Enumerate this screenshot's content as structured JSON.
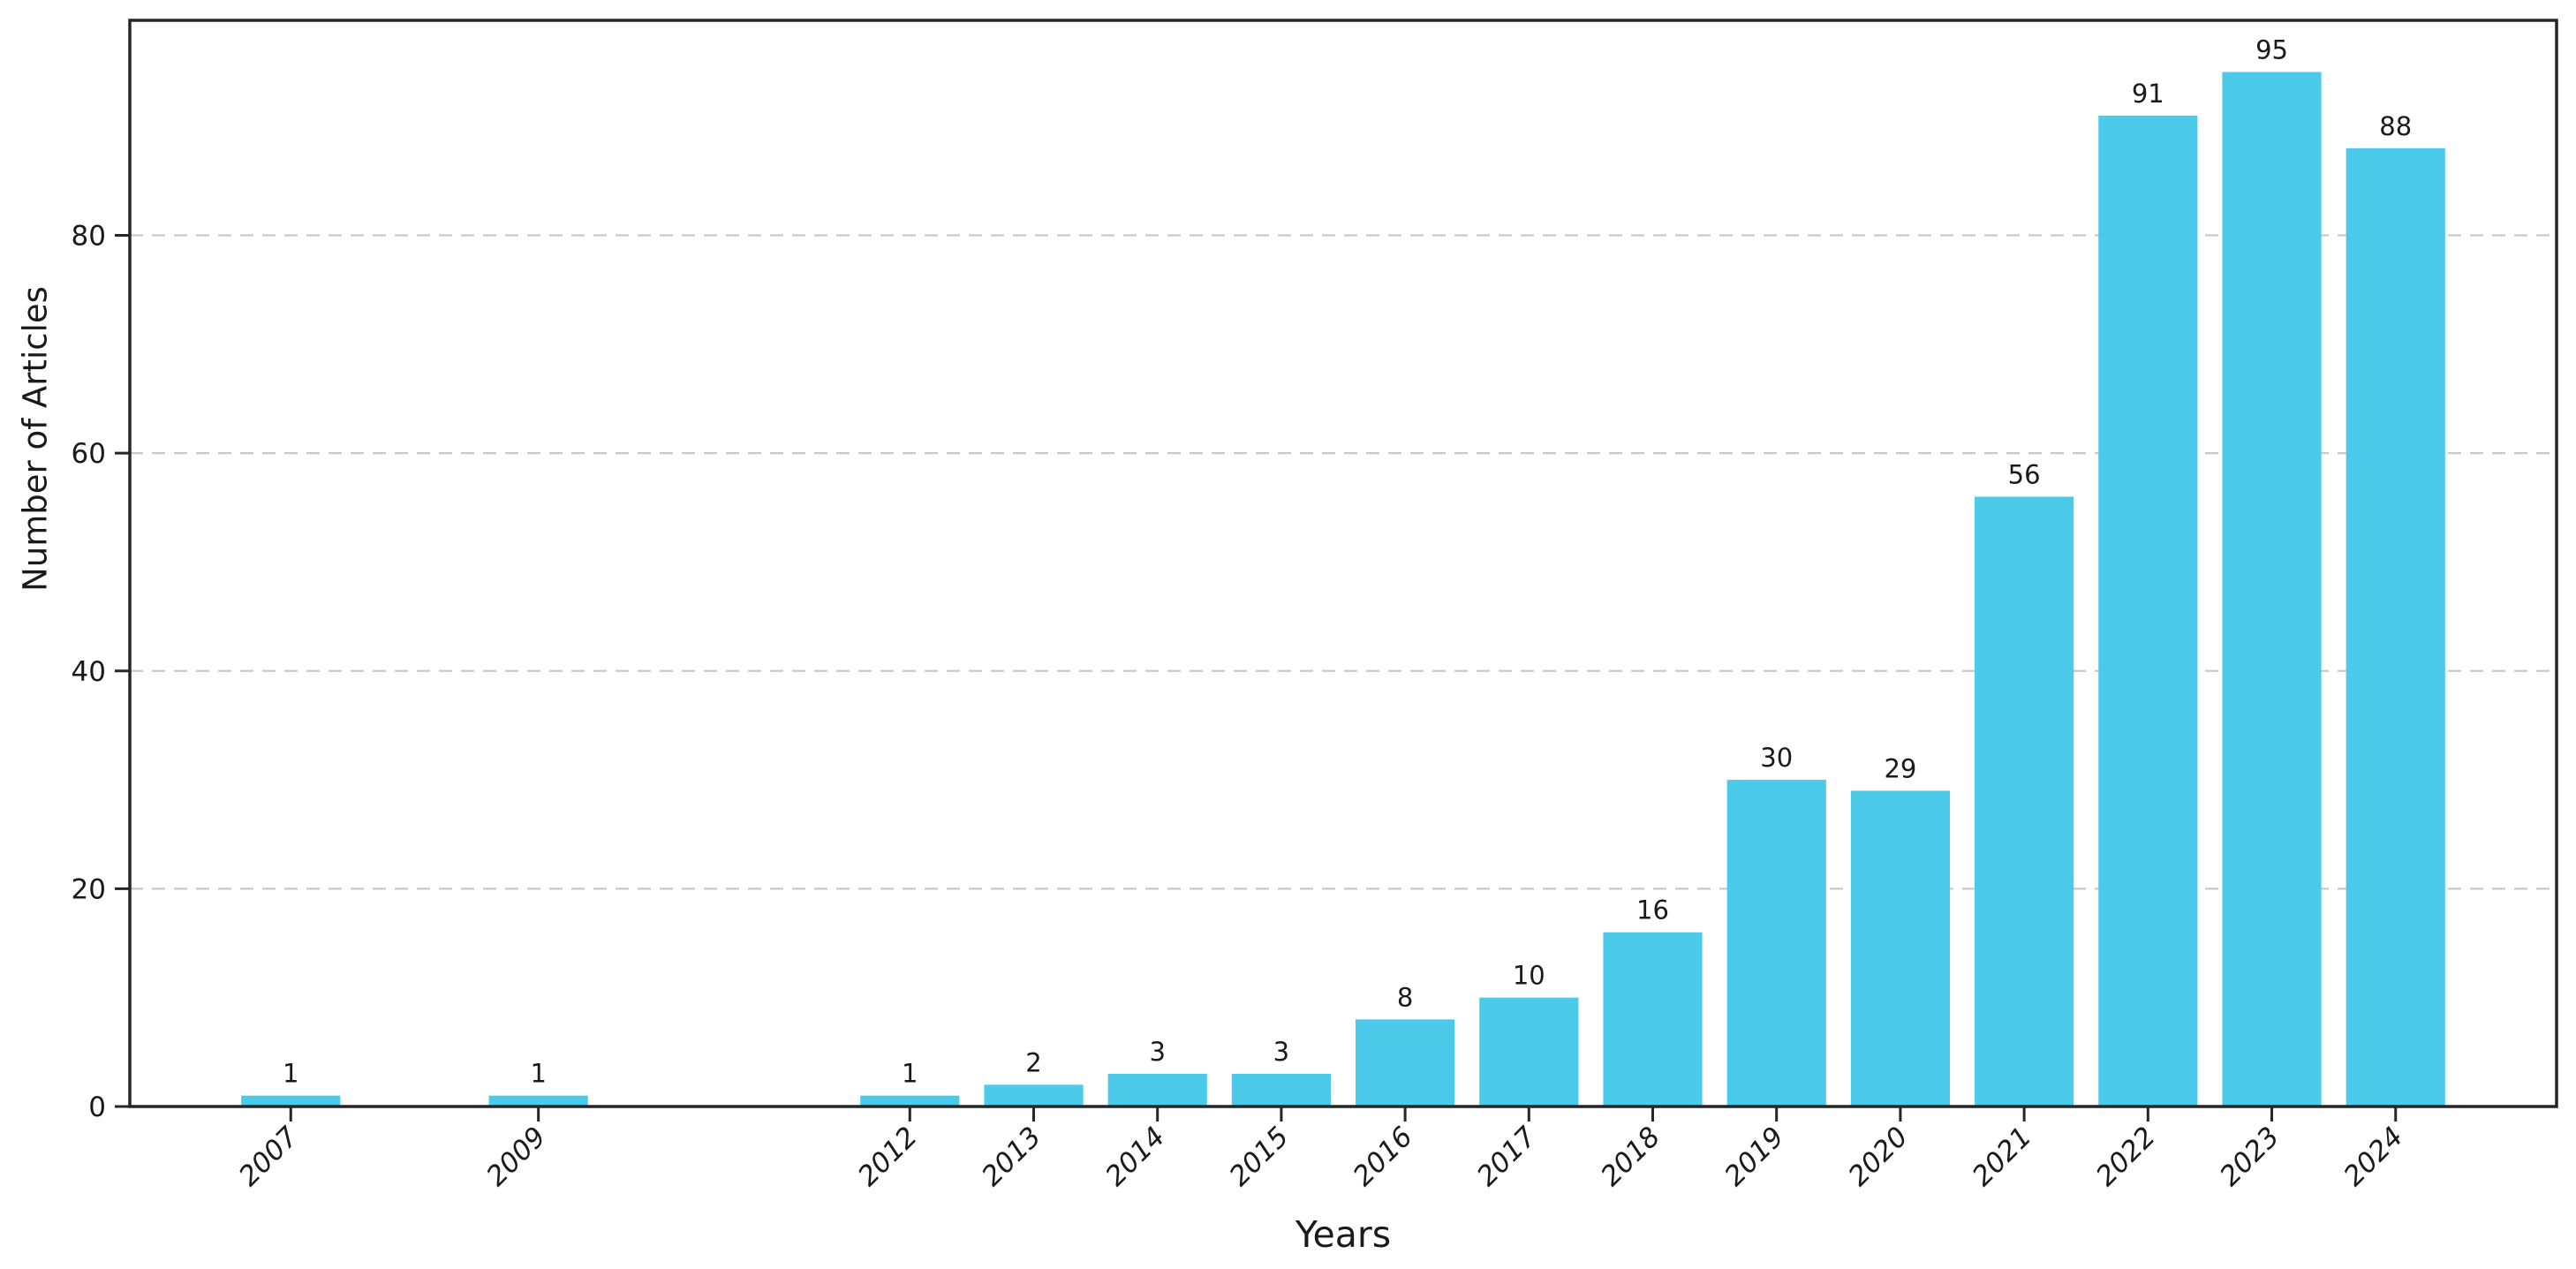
{
  "figure": {
    "background": "#ffffff"
  },
  "chart_data": {
    "type": "bar",
    "title": "",
    "xlabel": "Years",
    "ylabel": "Number of Articles",
    "categories": [
      "2007",
      "2009",
      "2012",
      "2013",
      "2014",
      "2015",
      "2016",
      "2017",
      "2018",
      "2019",
      "2020",
      "2021",
      "2022",
      "2023",
      "2024"
    ],
    "x_numeric": [
      2007,
      2009,
      2012,
      2013,
      2014,
      2015,
      2016,
      2017,
      2018,
      2019,
      2020,
      2021,
      2022,
      2023,
      2024
    ],
    "values": [
      1,
      1,
      1,
      2,
      3,
      3,
      8,
      10,
      16,
      30,
      29,
      56,
      91,
      95,
      88
    ],
    "bar_labels": [
      "1",
      "1",
      "1",
      "2",
      "3",
      "3",
      "8",
      "10",
      "16",
      "30",
      "29",
      "56",
      "91",
      "95",
      "88"
    ],
    "yticks": [
      0,
      20,
      40,
      60,
      80
    ],
    "ylim": [
      0,
      99.75
    ],
    "xlim": [
      2005.7,
      2025.3
    ],
    "bar_width_in_years": 0.8,
    "grid": "horizontal-dashed",
    "legend_position": "none",
    "tick_label_style": "italic, rotated 45",
    "colors": {
      "bar": "#4CCAE9",
      "grid": "#c9c9c9",
      "axis": "#262626",
      "text": "#1a1a1a"
    }
  }
}
